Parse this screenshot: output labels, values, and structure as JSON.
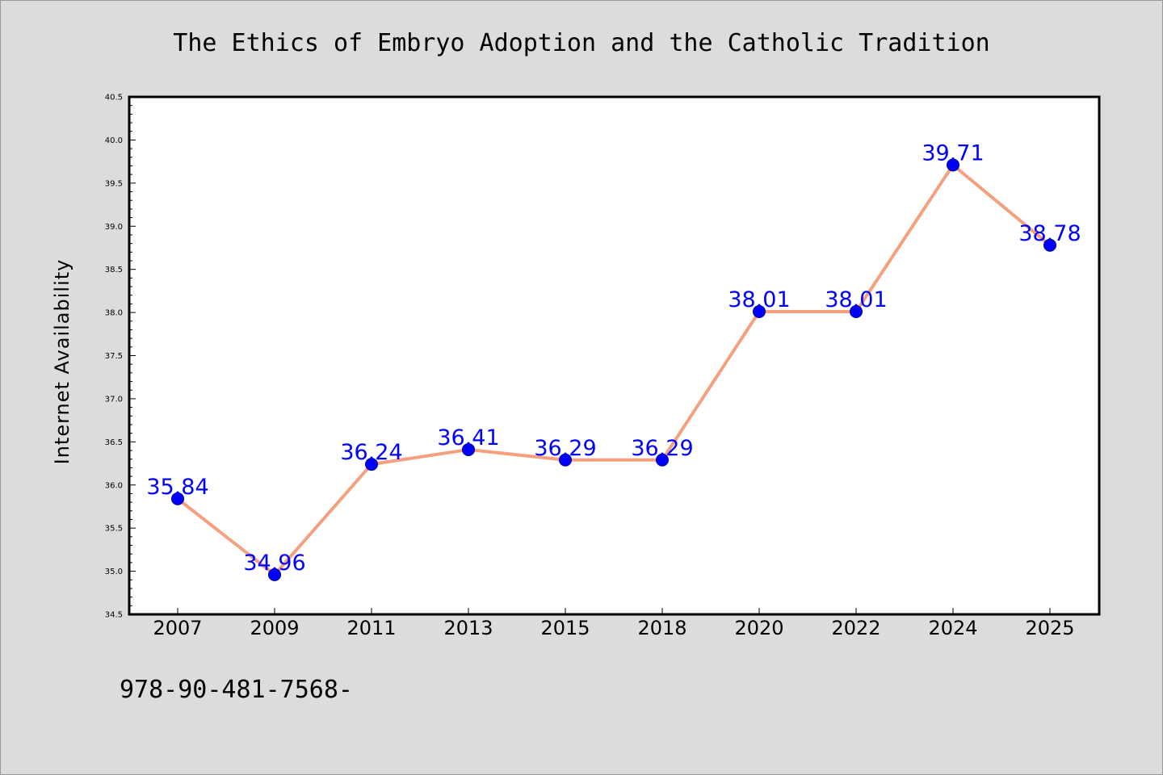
{
  "chart_data": {
    "type": "line",
    "title": "The Ethics of Embryo Adoption and the Catholic Tradition",
    "xlabel": "",
    "ylabel": "Internet Availability",
    "categories": [
      "2007",
      "2009",
      "2011",
      "2013",
      "2015",
      "2018",
      "2020",
      "2022",
      "2024",
      "2025"
    ],
    "values": [
      35.84,
      34.96,
      36.24,
      36.41,
      36.29,
      36.29,
      38.01,
      38.01,
      39.71,
      38.78
    ],
    "data_labels": [
      "35.84",
      "34.96",
      "36.24",
      "36.41",
      "36.29",
      "36.29",
      "38.01",
      "38.01",
      "39.71",
      "38.78"
    ],
    "ylim": [
      34.5,
      40.5
    ],
    "yticks": [
      "34.5",
      "35.0",
      "35.5",
      "36.0",
      "36.5",
      "37.0",
      "37.5",
      "38.0",
      "38.5",
      "39.0",
      "39.5",
      "40.0",
      "40.5"
    ],
    "grid": false,
    "legend": "none",
    "line_color": "#f4a07e",
    "marker_color": "#0000ff",
    "label_color": "#0000ff"
  },
  "footer": {
    "text": "978-90-481-7568-"
  }
}
